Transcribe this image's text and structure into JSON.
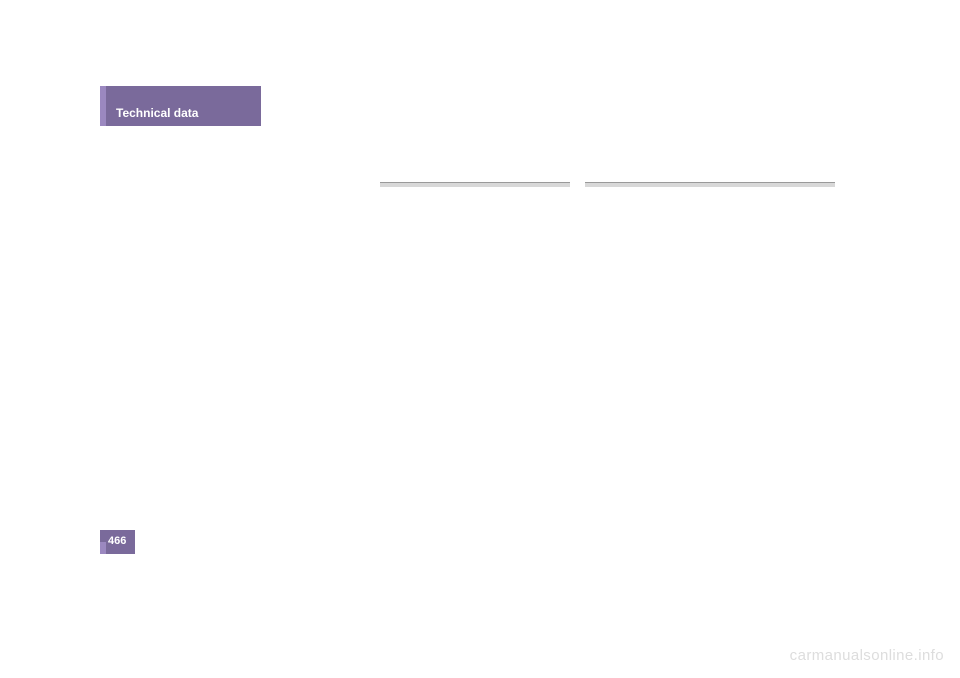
{
  "header": {
    "tab_label": "Technical data"
  },
  "footer": {
    "page_number": "466",
    "watermark": "carmanualsonline.info"
  },
  "rules": {
    "hr_color_light": "#d8d8d8",
    "hr_color_dark": "#9a9a9a"
  },
  "colors": {
    "tab_bg": "#7a6a9b",
    "tab_accent": "#9b88c0",
    "tab_text": "#ffffff",
    "page_bg": "#ffffff",
    "watermark_text": "#dddddd"
  },
  "typography": {
    "tab_fontsize": 12,
    "tab_fontweight": "bold",
    "pagenum_fontsize": 11,
    "watermark_fontsize": 15
  }
}
